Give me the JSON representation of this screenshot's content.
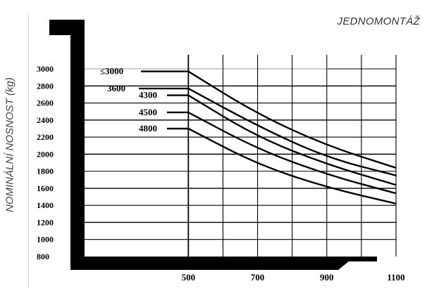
{
  "header": {
    "title": "JEDNOMONTÁŽ"
  },
  "chart_data": {
    "type": "line",
    "ylabel": "NOMINÁLNÍ NOSNOST (kg)",
    "xlabel": "",
    "xlim": [
      200,
      1100
    ],
    "ylim": [
      800,
      3000
    ],
    "x_ticks": [
      "500",
      "700",
      "900",
      "1100"
    ],
    "y_ticks": [
      "3000",
      "2800",
      "2600",
      "2400",
      "2200",
      "2000",
      "1800",
      "1600",
      "1400",
      "1200",
      "1000",
      "800"
    ],
    "grid": true,
    "series": [
      {
        "name": "≤3000",
        "x": [
          200,
          500,
          700,
          900,
          1100
        ],
        "y": [
          2970,
          2970,
          2470,
          2100,
          1840
        ]
      },
      {
        "name": "3600",
        "x": [
          200,
          500,
          700,
          900,
          1100
        ],
        "y": [
          2770,
          2770,
          2330,
          1960,
          1750
        ]
      },
      {
        "name": "4300",
        "x": [
          200,
          500,
          700,
          900,
          1100
        ],
        "y": [
          2690,
          2690,
          2200,
          1880,
          1640
        ]
      },
      {
        "name": "4500",
        "x": [
          200,
          500,
          700,
          900,
          1100
        ],
        "y": [
          2490,
          2490,
          2060,
          1760,
          1540
        ]
      },
      {
        "name": "4800",
        "x": [
          200,
          500,
          700,
          900,
          1100
        ],
        "y": [
          2300,
          2300,
          1880,
          1610,
          1420
        ]
      }
    ],
    "colors": {
      "line": "#000000",
      "grid": "#000000",
      "frame": "#000000"
    }
  }
}
